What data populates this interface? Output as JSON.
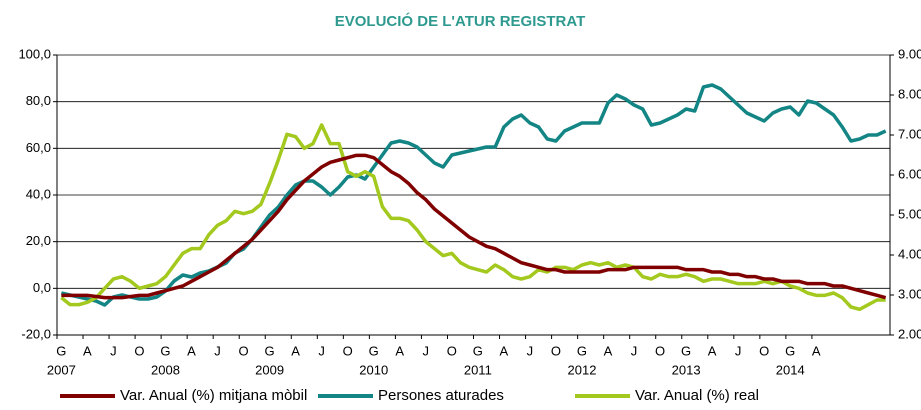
{
  "chart_data": {
    "type": "line",
    "title": "EVOLUCIÓ DE L'ATUR REGISTRAT",
    "categories": [
      "G",
      null,
      null,
      "A",
      null,
      null,
      "J",
      null,
      null,
      "O",
      null,
      null,
      "G",
      null,
      null,
      "A",
      null,
      null,
      "J",
      null,
      null,
      "O",
      null,
      null,
      "G",
      null,
      null,
      "A",
      null,
      null,
      "J",
      null,
      null,
      "O",
      null,
      null,
      "G",
      null,
      null,
      "A",
      null,
      null,
      "J",
      null,
      null,
      "O",
      null,
      null,
      "G",
      null,
      null,
      "A",
      null,
      null,
      "J",
      null,
      null,
      "O",
      null,
      null,
      "G",
      null,
      null,
      "A",
      null,
      null,
      "J",
      null,
      null,
      "O",
      null,
      null,
      "G",
      null,
      null,
      "A",
      null,
      null,
      "J",
      null,
      null,
      "O",
      null,
      null,
      "G",
      null,
      null,
      "A",
      null,
      null,
      null,
      null,
      null,
      null,
      null,
      null
    ],
    "years": [
      "2007",
      "2008",
      "2009",
      "2010",
      "2011",
      "2012",
      "2013",
      "2014"
    ],
    "ylim": [
      -20,
      100
    ],
    "yticks": [
      {
        "value": -20,
        "label": "-20,0"
      },
      {
        "value": 0,
        "label": "0,0"
      },
      {
        "value": 20,
        "label": "20,0"
      },
      {
        "value": 40,
        "label": "40,0"
      },
      {
        "value": 60,
        "label": "60,0"
      },
      {
        "value": 80,
        "label": "80,0"
      },
      {
        "value": 100,
        "label": "100,0"
      }
    ],
    "y2lim": [
      2000,
      9000
    ],
    "y2ticks": [
      {
        "value": 2000,
        "label": "2.000"
      },
      {
        "value": 3000,
        "label": "3.000"
      },
      {
        "value": 4000,
        "label": "4.000"
      },
      {
        "value": 5000,
        "label": "5.000"
      },
      {
        "value": 6000,
        "label": "6.000"
      },
      {
        "value": 7000,
        "label": "7.000"
      },
      {
        "value": 8000,
        "label": "8.000"
      },
      {
        "value": 9000,
        "label": "9.000"
      }
    ],
    "grid": true,
    "legend": "bottom",
    "series": [
      {
        "name": "Var. Anual (%) mitjana mòbil",
        "color": "#800000",
        "values": [
          -3,
          -3,
          -3,
          -3,
          -3.5,
          -4,
          -4,
          -4,
          -3.5,
          -3,
          -3,
          -2,
          -1,
          0,
          1,
          3,
          5,
          7,
          9,
          12,
          15,
          18,
          21,
          25,
          29,
          33,
          38,
          42,
          46,
          49,
          52,
          54,
          55,
          56,
          57,
          57,
          56,
          53,
          50,
          48,
          45,
          41,
          38,
          34,
          31,
          28,
          25,
          22,
          20,
          18,
          17,
          15,
          13,
          11,
          10,
          9,
          8,
          8,
          7,
          7,
          7,
          7,
          7,
          8,
          8,
          8,
          9,
          9,
          9,
          9,
          9,
          9,
          8,
          8,
          8,
          7,
          7,
          6,
          6,
          5,
          5,
          4,
          4,
          3,
          3,
          3,
          2,
          2,
          2,
          1,
          1,
          0,
          -1,
          -2,
          -3,
          -4
        ]
      },
      {
        "name": "Persones aturades",
        "color": "#138585",
        "axis": "y2",
        "values": [
          3050,
          3000,
          2950,
          2900,
          2850,
          2750,
          2950,
          3000,
          2950,
          2900,
          2900,
          2950,
          3100,
          3350,
          3500,
          3450,
          3550,
          3600,
          3700,
          3800,
          4050,
          4150,
          4400,
          4700,
          5000,
          5200,
          5500,
          5750,
          5850,
          5850,
          5700,
          5500,
          5700,
          5950,
          6000,
          5900,
          6200,
          6500,
          6800,
          6850,
          6800,
          6700,
          6500,
          6300,
          6200,
          6500,
          6550,
          6600,
          6650,
          6700,
          6700,
          7200,
          7400,
          7500,
          7300,
          7200,
          6900,
          6850,
          7100,
          7200,
          7300,
          7300,
          7300,
          7800,
          8000,
          7900,
          7750,
          7650,
          7250,
          7300,
          7400,
          7500,
          7650,
          7600,
          8200,
          8250,
          8150,
          7950,
          7750,
          7550,
          7450,
          7350,
          7550,
          7650,
          7700,
          7500,
          7850,
          7800,
          7650,
          7500,
          7200,
          6850,
          6900,
          7000,
          7000,
          7100
        ]
      },
      {
        "name": "Var. Anual (%) real",
        "color": "#a3c91f",
        "values": [
          -4,
          -7,
          -7,
          -6,
          -4,
          0,
          4,
          5,
          3,
          0,
          1,
          2,
          5,
          10,
          15,
          17,
          17,
          23,
          27,
          29,
          33,
          32,
          33,
          36,
          45,
          55,
          66,
          65,
          60,
          62,
          70,
          62,
          62,
          50,
          48,
          50,
          48,
          35,
          30,
          30,
          29,
          25,
          20,
          17,
          14,
          15,
          11,
          9,
          8,
          7,
          10,
          8,
          5,
          4,
          5,
          8,
          7,
          9,
          9,
          8,
          10,
          11,
          10,
          11,
          9,
          10,
          9,
          5,
          4,
          6,
          5,
          5,
          6,
          5,
          3,
          4,
          4,
          3,
          2,
          2,
          2,
          3,
          2,
          3,
          1,
          0,
          -2,
          -3,
          -3,
          -2,
          -4,
          -8,
          -9,
          -7,
          -5,
          -5
        ]
      }
    ]
  }
}
